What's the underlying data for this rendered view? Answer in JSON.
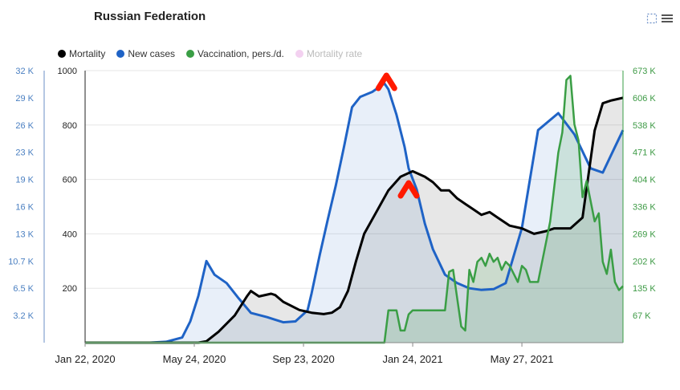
{
  "chart_data": {
    "type": "line",
    "title": "Russian Federation",
    "x_ticks": [
      "Jan 22, 2020",
      "May 24, 2020",
      "Sep 23, 2020",
      "Jan 24, 2021",
      "May 27, 2021"
    ],
    "y_left_outer": {
      "ticks": [
        "3.2 K",
        "6.5 K",
        "10.7 K",
        "13 K",
        "16 K",
        "19 K",
        "23 K",
        "26 K",
        "29 K",
        "32 K"
      ],
      "color": "#4a7fc1",
      "range": [
        0,
        32000
      ]
    },
    "y_left_inner": {
      "ticks": [
        "200",
        "400",
        "600",
        "800",
        "1000"
      ],
      "color": "#222222",
      "range": [
        0,
        1000
      ]
    },
    "y_right": {
      "ticks": [
        "67 K",
        "135 K",
        "202 K",
        "269 K",
        "336 K",
        "404 K",
        "471 K",
        "538 K",
        "606 K",
        "673 K"
      ],
      "color": "#3d9a45",
      "range": [
        0,
        673000
      ]
    },
    "grid": true,
    "legend_position": "top-left",
    "series": [
      {
        "name": "Mortality",
        "color": "#000000",
        "axis": "left_inner",
        "x": [
          0,
          28,
          30,
          33,
          37,
          40,
          41,
          43,
          46,
          47,
          49,
          53,
          56,
          59,
          61,
          63,
          65,
          67,
          69,
          72,
          75,
          78,
          81,
          84,
          86,
          88,
          90,
          92,
          94,
          96,
          98,
          100,
          102,
          105,
          108,
          111,
          114,
          116,
          120,
          123,
          126,
          128,
          130,
          133
        ],
        "values": [
          0,
          0,
          5,
          40,
          100,
          170,
          190,
          170,
          180,
          175,
          150,
          120,
          110,
          105,
          110,
          130,
          190,
          300,
          400,
          480,
          560,
          610,
          630,
          610,
          590,
          560,
          560,
          530,
          510,
          490,
          470,
          480,
          460,
          430,
          420,
          400,
          410,
          420,
          420,
          460,
          780,
          880,
          890,
          900
        ]
      },
      {
        "name": "New cases",
        "color": "#1f63c6",
        "axis": "left_outer",
        "x": [
          0,
          16,
          20,
          24,
          26,
          28,
          30,
          32,
          35,
          38,
          41,
          45,
          47,
          49,
          52,
          55,
          56,
          58,
          60,
          62,
          64,
          66,
          68,
          71,
          74,
          75,
          77,
          79,
          80,
          82,
          84,
          86,
          89,
          92,
          95,
          98,
          101,
          104,
          108,
          112,
          117,
          121,
          125,
          128,
          131,
          133
        ],
        "values": [
          0,
          0,
          100,
          600,
          2500,
          5500,
          9600,
          8000,
          7000,
          5200,
          3500,
          3000,
          2700,
          2400,
          2500,
          3800,
          5800,
          10300,
          14500,
          18500,
          23000,
          27700,
          28900,
          29500,
          30500,
          29800,
          26800,
          23000,
          20500,
          18000,
          14000,
          11000,
          8000,
          7000,
          6400,
          6200,
          6300,
          7000,
          13500,
          25000,
          27000,
          24500,
          20500,
          20000,
          23000,
          25000
        ]
      },
      {
        "name": "Vaccination, pers./d.",
        "color": "#3a9e45",
        "axis": "right",
        "x": [
          0,
          74,
          75,
          77,
          78,
          79,
          80,
          81,
          82,
          84,
          86,
          88,
          89,
          90,
          91,
          93,
          94,
          95,
          96,
          97,
          98,
          99,
          100,
          101,
          102,
          103,
          104,
          105,
          106,
          107,
          108,
          109,
          110,
          112,
          114,
          115,
          117,
          118,
          119,
          120,
          121,
          122,
          123,
          124,
          126,
          127,
          128,
          129,
          130,
          131,
          132,
          133
        ],
        "values": [
          0,
          0,
          80000,
          80000,
          30000,
          30000,
          70000,
          80000,
          80000,
          80000,
          80000,
          80000,
          80000,
          175000,
          180000,
          40000,
          30000,
          180000,
          150000,
          200000,
          210000,
          190000,
          220000,
          200000,
          210000,
          180000,
          200000,
          190000,
          170000,
          150000,
          190000,
          180000,
          150000,
          150000,
          250000,
          300000,
          470000,
          520000,
          650000,
          660000,
          540000,
          500000,
          360000,
          400000,
          300000,
          320000,
          200000,
          170000,
          230000,
          150000,
          130000,
          140000
        ]
      },
      {
        "name": "Mortality rate",
        "color": "#f3c6ef",
        "axis": "left_inner",
        "values": []
      }
    ]
  },
  "ui": {
    "title": "Russian Federation",
    "legend": [
      {
        "label": "Mortality",
        "color": "#000000",
        "active": true
      },
      {
        "label": "New cases",
        "color": "#1f63c6",
        "active": true
      },
      {
        "label": "Vaccination, pers./d.",
        "color": "#3a9e45",
        "active": true
      },
      {
        "label": "Mortality rate",
        "color": "#f3d1f0",
        "active": false
      }
    ]
  }
}
